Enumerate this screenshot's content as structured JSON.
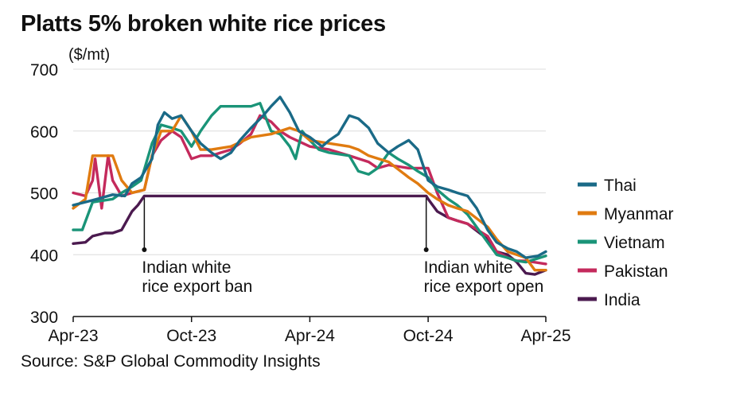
{
  "chart_data": {
    "type": "line",
    "title": "Platts 5% broken white rice prices",
    "ylabel": "($/mt)",
    "source": "Source: S&P Global Commodity Insights",
    "ylim": [
      300,
      700
    ],
    "yticks": [
      300,
      400,
      500,
      600,
      700
    ],
    "xlim": [
      "2023-04",
      "2025-04"
    ],
    "xticks": [
      {
        "label": "Apr-23",
        "x": "2023-04"
      },
      {
        "label": "Oct-23",
        "x": "2023-10"
      },
      {
        "label": "Apr-24",
        "x": "2024-04"
      },
      {
        "label": "Oct-24",
        "x": "2024-10"
      },
      {
        "label": "Apr-25",
        "x": "2025-04"
      }
    ],
    "grid": true,
    "legend_position": "right",
    "annotations": [
      {
        "x": "2023-07-20",
        "text_lines": [
          "Indian white",
          "rice export ban"
        ],
        "y_from": 495,
        "y_to": 408
      },
      {
        "x": "2024-09-28",
        "text_lines": [
          "Indian white",
          "rice export open"
        ],
        "y_from": 495,
        "y_to": 408
      }
    ],
    "series": [
      {
        "name": "Thai",
        "color": "#1a6a87",
        "points": [
          [
            "2023-04-01",
            480
          ],
          [
            "2023-05-01",
            488
          ],
          [
            "2023-06-01",
            497
          ],
          [
            "2023-06-20",
            495
          ],
          [
            "2023-07-01",
            515
          ],
          [
            "2023-07-15",
            525
          ],
          [
            "2023-08-01",
            555
          ],
          [
            "2023-08-10",
            610
          ],
          [
            "2023-08-20",
            630
          ],
          [
            "2023-09-01",
            620
          ],
          [
            "2023-09-15",
            625
          ],
          [
            "2023-10-01",
            600
          ],
          [
            "2023-10-15",
            580
          ],
          [
            "2023-11-01",
            565
          ],
          [
            "2023-11-15",
            555
          ],
          [
            "2023-12-01",
            565
          ],
          [
            "2023-12-15",
            585
          ],
          [
            "2024-01-01",
            605
          ],
          [
            "2024-01-20",
            625
          ],
          [
            "2024-02-01",
            640
          ],
          [
            "2024-02-15",
            655
          ],
          [
            "2024-03-01",
            630
          ],
          [
            "2024-03-15",
            600
          ],
          [
            "2024-04-01",
            590
          ],
          [
            "2024-04-20",
            575
          ],
          [
            "2024-05-01",
            585
          ],
          [
            "2024-05-15",
            595
          ],
          [
            "2024-06-01",
            625
          ],
          [
            "2024-06-15",
            620
          ],
          [
            "2024-07-01",
            605
          ],
          [
            "2024-07-15",
            580
          ],
          [
            "2024-08-01",
            565
          ],
          [
            "2024-08-15",
            575
          ],
          [
            "2024-09-01",
            585
          ],
          [
            "2024-09-15",
            570
          ],
          [
            "2024-10-01",
            520
          ],
          [
            "2024-10-15",
            510
          ],
          [
            "2024-11-01",
            505
          ],
          [
            "2024-11-15",
            500
          ],
          [
            "2024-12-01",
            495
          ],
          [
            "2024-12-15",
            475
          ],
          [
            "2025-01-01",
            440
          ],
          [
            "2025-01-15",
            420
          ],
          [
            "2025-02-01",
            410
          ],
          [
            "2025-02-15",
            405
          ],
          [
            "2025-03-01",
            395
          ],
          [
            "2025-03-20",
            398
          ],
          [
            "2025-04-01",
            405
          ]
        ]
      },
      {
        "name": "Myanmar",
        "color": "#e07b10",
        "points": [
          [
            "2023-04-01",
            475
          ],
          [
            "2023-04-20",
            490
          ],
          [
            "2023-05-01",
            560
          ],
          [
            "2023-06-01",
            560
          ],
          [
            "2023-06-15",
            520
          ],
          [
            "2023-07-01",
            500
          ],
          [
            "2023-07-20",
            505
          ],
          [
            "2023-08-01",
            560
          ],
          [
            "2023-08-15",
            600
          ],
          [
            "2023-09-01",
            600
          ],
          [
            "2023-09-15",
            625
          ],
          [
            "2023-10-01",
            600
          ],
          [
            "2023-10-15",
            570
          ],
          [
            "2023-11-01",
            570
          ],
          [
            "2023-12-01",
            575
          ],
          [
            "2024-01-01",
            590
          ],
          [
            "2024-02-01",
            595
          ],
          [
            "2024-03-01",
            605
          ],
          [
            "2024-03-15",
            600
          ],
          [
            "2024-04-01",
            585
          ],
          [
            "2024-05-01",
            580
          ],
          [
            "2024-06-01",
            575
          ],
          [
            "2024-06-15",
            570
          ],
          [
            "2024-07-01",
            560
          ],
          [
            "2024-08-01",
            550
          ],
          [
            "2024-09-01",
            525
          ],
          [
            "2024-09-15",
            515
          ],
          [
            "2024-10-01",
            500
          ],
          [
            "2024-10-15",
            490
          ],
          [
            "2024-11-01",
            480
          ],
          [
            "2024-11-15",
            475
          ],
          [
            "2024-12-01",
            470
          ],
          [
            "2025-01-01",
            445
          ],
          [
            "2025-01-15",
            425
          ],
          [
            "2025-02-01",
            405
          ],
          [
            "2025-02-15",
            400
          ],
          [
            "2025-03-01",
            395
          ],
          [
            "2025-03-15",
            375
          ],
          [
            "2025-04-01",
            375
          ]
        ]
      },
      {
        "name": "Vietnam",
        "color": "#1a9478",
        "points": [
          [
            "2023-04-01",
            440
          ],
          [
            "2023-04-15",
            440
          ],
          [
            "2023-05-01",
            485
          ],
          [
            "2023-06-01",
            490
          ],
          [
            "2023-06-15",
            500
          ],
          [
            "2023-07-01",
            510
          ],
          [
            "2023-07-15",
            520
          ],
          [
            "2023-08-01",
            580
          ],
          [
            "2023-08-15",
            610
          ],
          [
            "2023-09-01",
            605
          ],
          [
            "2023-09-15",
            600
          ],
          [
            "2023-10-01",
            575
          ],
          [
            "2023-10-15",
            600
          ],
          [
            "2023-11-01",
            625
          ],
          [
            "2023-11-15",
            640
          ],
          [
            "2023-12-01",
            640
          ],
          [
            "2024-01-01",
            640
          ],
          [
            "2024-01-15",
            645
          ],
          [
            "2024-02-01",
            600
          ],
          [
            "2024-02-15",
            595
          ],
          [
            "2024-03-01",
            575
          ],
          [
            "2024-03-10",
            555
          ],
          [
            "2024-03-20",
            600
          ],
          [
            "2024-04-01",
            585
          ],
          [
            "2024-04-15",
            570
          ],
          [
            "2024-05-01",
            565
          ],
          [
            "2024-06-01",
            560
          ],
          [
            "2024-06-15",
            535
          ],
          [
            "2024-07-01",
            530
          ],
          [
            "2024-07-15",
            540
          ],
          [
            "2024-08-01",
            565
          ],
          [
            "2024-08-15",
            555
          ],
          [
            "2024-09-01",
            545
          ],
          [
            "2024-09-15",
            535
          ],
          [
            "2024-10-01",
            525
          ],
          [
            "2024-10-15",
            505
          ],
          [
            "2024-11-01",
            490
          ],
          [
            "2024-11-15",
            480
          ],
          [
            "2024-12-01",
            465
          ],
          [
            "2025-01-01",
            420
          ],
          [
            "2025-01-15",
            400
          ],
          [
            "2025-02-01",
            395
          ],
          [
            "2025-02-15",
            390
          ],
          [
            "2025-03-01",
            388
          ],
          [
            "2025-04-01",
            398
          ]
        ]
      },
      {
        "name": "Pakistan",
        "color": "#c42a5c",
        "points": [
          [
            "2023-04-01",
            500
          ],
          [
            "2023-04-20",
            495
          ],
          [
            "2023-05-01",
            520
          ],
          [
            "2023-05-05",
            555
          ],
          [
            "2023-05-15",
            475
          ],
          [
            "2023-05-25",
            560
          ],
          [
            "2023-06-01",
            520
          ],
          [
            "2023-06-15",
            495
          ],
          [
            "2023-07-01",
            500
          ],
          [
            "2023-07-20",
            505
          ],
          [
            "2023-08-01",
            560
          ],
          [
            "2023-08-15",
            585
          ],
          [
            "2023-09-01",
            600
          ],
          [
            "2023-09-15",
            590
          ],
          [
            "2023-10-01",
            555
          ],
          [
            "2023-10-15",
            560
          ],
          [
            "2023-11-01",
            560
          ],
          [
            "2023-11-15",
            565
          ],
          [
            "2023-12-01",
            570
          ],
          [
            "2023-12-15",
            580
          ],
          [
            "2024-01-01",
            595
          ],
          [
            "2024-01-15",
            625
          ],
          [
            "2024-02-01",
            615
          ],
          [
            "2024-02-15",
            600
          ],
          [
            "2024-03-01",
            590
          ],
          [
            "2024-04-01",
            575
          ],
          [
            "2024-05-01",
            570
          ],
          [
            "2024-06-01",
            560
          ],
          [
            "2024-07-01",
            550
          ],
          [
            "2024-07-15",
            540
          ],
          [
            "2024-08-01",
            545
          ],
          [
            "2024-09-01",
            540
          ],
          [
            "2024-10-01",
            540
          ],
          [
            "2024-10-15",
            500
          ],
          [
            "2024-11-01",
            460
          ],
          [
            "2024-11-15",
            455
          ],
          [
            "2024-12-01",
            450
          ],
          [
            "2025-01-01",
            430
          ],
          [
            "2025-01-15",
            405
          ],
          [
            "2025-02-01",
            395
          ],
          [
            "2025-02-15",
            390
          ],
          [
            "2025-03-01",
            390
          ],
          [
            "2025-04-01",
            385
          ]
        ]
      },
      {
        "name": "India",
        "color": "#4b1a4f",
        "points": [
          [
            "2023-04-01",
            418
          ],
          [
            "2023-04-20",
            420
          ],
          [
            "2023-05-01",
            430
          ],
          [
            "2023-05-20",
            435
          ],
          [
            "2023-06-01",
            435
          ],
          [
            "2023-06-15",
            440
          ],
          [
            "2023-07-01",
            470
          ],
          [
            "2023-07-10",
            480
          ],
          [
            "2023-07-20",
            495
          ],
          [
            "2023-10-01",
            495
          ],
          [
            "2024-09-01",
            495
          ],
          [
            "2024-09-28",
            495
          ],
          [
            "2024-10-01",
            490
          ],
          [
            "2024-10-15",
            470
          ],
          [
            "2024-11-01",
            460
          ],
          [
            "2024-11-15",
            455
          ],
          [
            "2024-12-01",
            450
          ],
          [
            "2025-01-01",
            425
          ],
          [
            "2025-01-15",
            405
          ],
          [
            "2025-02-01",
            400
          ],
          [
            "2025-02-15",
            388
          ],
          [
            "2025-03-01",
            370
          ],
          [
            "2025-03-15",
            368
          ],
          [
            "2025-04-01",
            375
          ]
        ]
      }
    ]
  }
}
